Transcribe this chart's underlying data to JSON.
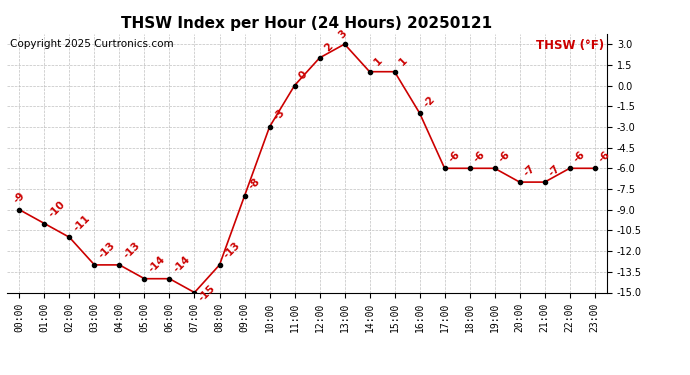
{
  "title": "THSW Index per Hour (24 Hours) 20250121",
  "copyright": "Copyright 2025 Curtronics.com",
  "legend_label": "THSW (°F)",
  "hours": [
    0,
    1,
    2,
    3,
    4,
    5,
    6,
    7,
    8,
    9,
    10,
    11,
    12,
    13,
    14,
    15,
    16,
    17,
    18,
    19,
    20,
    21,
    22,
    23
  ],
  "values": [
    -9,
    -10,
    -11,
    -13,
    -13,
    -14,
    -14,
    -15,
    -13,
    -8,
    -3,
    0,
    2,
    3,
    1,
    1,
    -2,
    -6,
    -6,
    -6,
    -7,
    -7,
    -6,
    -6
  ],
  "line_color": "#cc0000",
  "marker_color": "#000000",
  "label_color": "#cc0000",
  "bg_color": "#ffffff",
  "grid_color": "#b0b0b0",
  "ylim_min": -15.0,
  "ylim_max": 3.75,
  "ytick_values": [
    3.0,
    1.5,
    0.0,
    -1.5,
    -3.0,
    -4.5,
    -6.0,
    -7.5,
    -9.0,
    -10.5,
    -12.0,
    -13.5,
    -15.0
  ],
  "title_fontsize": 11,
  "copyright_fontsize": 7.5,
  "legend_fontsize": 8.5,
  "tick_fontsize": 7,
  "label_fontsize": 7.5
}
